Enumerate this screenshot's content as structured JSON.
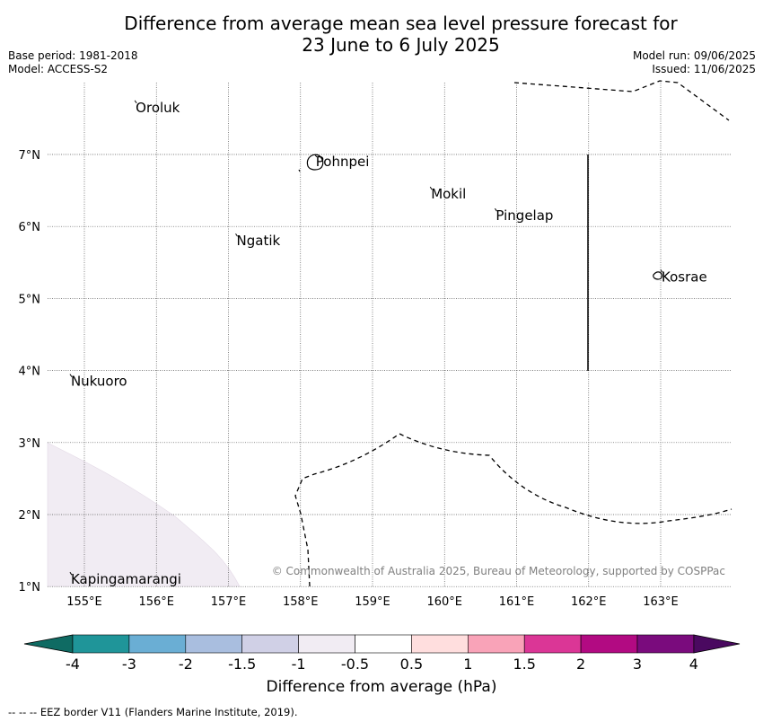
{
  "header": {
    "title_line1": "Difference from average mean sea level pressure forecast for",
    "title_line2": "23 June to 6 July 2025",
    "base_period": "Base period: 1981-2018",
    "model": "Model: ACCESS-S2",
    "model_run": "Model run: 09/06/2025",
    "issued": "Issued: 11/06/2025"
  },
  "map": {
    "lon_ticks": [
      "155°E",
      "156°E",
      "157°E",
      "158°E",
      "159°E",
      "160°E",
      "161°E",
      "162°E",
      "163°E"
    ],
    "lat_ticks": [
      "7°N",
      "6°N",
      "5°N",
      "4°N",
      "3°N",
      "2°N",
      "1°N"
    ],
    "places": [
      {
        "name": "Oroluk",
        "lon": 155.7,
        "lat": 7.65
      },
      {
        "name": "Pohnpei",
        "lon": 158.2,
        "lat": 6.9
      },
      {
        "name": "Mokil",
        "lon": 159.8,
        "lat": 6.45
      },
      {
        "name": "Pingelap",
        "lon": 160.7,
        "lat": 6.15
      },
      {
        "name": "Ngatik",
        "lon": 157.1,
        "lat": 5.8
      },
      {
        "name": "Kosrae",
        "lon": 163.0,
        "lat": 5.3
      },
      {
        "name": "Nukuoro",
        "lon": 154.8,
        "lat": 3.85
      },
      {
        "name": "Kapingamarangi",
        "lon": 154.8,
        "lat": 1.1
      }
    ],
    "copyright": "© Commonwealth of Australia 2025, Bureau of Meteorology, supported by COSPPac",
    "shaded_region_color": "#f1ecf3"
  },
  "colorbar": {
    "labels": [
      "-4",
      "-3",
      "-2",
      "-1.5",
      "-1",
      "-0.5",
      "0.5",
      "1",
      "1.5",
      "2",
      "3",
      "4"
    ],
    "colors": [
      "#0f6b63",
      "#1f9599",
      "#6aaed4",
      "#a9bedf",
      "#d0d0e6",
      "#f1ecf3",
      "#ffffff",
      "#ffdede",
      "#f9a3b8",
      "#db3696",
      "#b20a82",
      "#7a0b7d",
      "#4a0960"
    ],
    "title": "Difference from average (hPa)"
  },
  "footer": {
    "eez_note": "--  --  -- EEZ border V11 (Flanders Marine Institute, 2019)."
  }
}
